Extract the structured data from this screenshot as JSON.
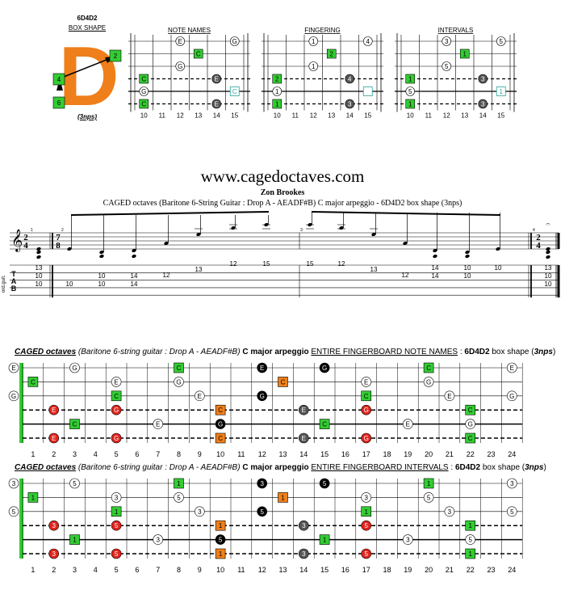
{
  "colors": {
    "green": "#33cc33",
    "orange": "#ef7f1a",
    "red": "#e3231c",
    "black": "#000000",
    "grey": "#555555",
    "white": "#ffffff",
    "teal": "#2aa39a"
  },
  "box": {
    "label_top": "6D4D2",
    "label_shape": "BOX SHAPE",
    "letter": "D",
    "marker_2": "2",
    "marker_4": "4",
    "marker_6": "6",
    "nps": "(3nps)"
  },
  "small_diagrams": {
    "titles": [
      "NOTE NAMES",
      "FINGERING",
      "INTERVALS"
    ],
    "fret_numbers": [
      "10",
      "11",
      "12",
      "13",
      "14",
      "15"
    ],
    "notes": [
      [
        {
          "s": 1,
          "f": 12,
          "t": "E",
          "c": "white"
        },
        {
          "s": 1,
          "f": 15,
          "t": "G",
          "c": "white"
        },
        {
          "s": 2,
          "f": 13,
          "t": "C",
          "c": "green"
        },
        {
          "s": 3,
          "f": 12,
          "t": "G",
          "c": "white"
        },
        {
          "s": 4,
          "f": 10,
          "t": "C",
          "c": "green"
        },
        {
          "s": 4,
          "f": 14,
          "t": "E",
          "c": "grey"
        },
        {
          "s": 5,
          "f": 10,
          "t": "G",
          "c": "white"
        },
        {
          "s": 5,
          "f": 15,
          "t": "C",
          "c": "ghost"
        },
        {
          "s": 6,
          "f": 10,
          "t": "C",
          "c": "green"
        },
        {
          "s": 6,
          "f": 14,
          "t": "E",
          "c": "grey"
        }
      ],
      [
        {
          "s": 1,
          "f": 12,
          "t": "1",
          "c": "white"
        },
        {
          "s": 1,
          "f": 15,
          "t": "4",
          "c": "white"
        },
        {
          "s": 2,
          "f": 13,
          "t": "2",
          "c": "green"
        },
        {
          "s": 3,
          "f": 12,
          "t": "1",
          "c": "white"
        },
        {
          "s": 4,
          "f": 10,
          "t": "2",
          "c": "green"
        },
        {
          "s": 4,
          "f": 14,
          "t": "4",
          "c": "grey"
        },
        {
          "s": 5,
          "f": 10,
          "t": "1",
          "c": "white"
        },
        {
          "s": 5,
          "f": 15,
          "t": "",
          "c": "ghost"
        },
        {
          "s": 6,
          "f": 10,
          "t": "1",
          "c": "green"
        },
        {
          "s": 6,
          "f": 14,
          "t": "3",
          "c": "grey"
        }
      ],
      [
        {
          "s": 1,
          "f": 12,
          "t": "3",
          "c": "white"
        },
        {
          "s": 1,
          "f": 15,
          "t": "5",
          "c": "white"
        },
        {
          "s": 2,
          "f": 13,
          "t": "1",
          "c": "green"
        },
        {
          "s": 3,
          "f": 12,
          "t": "5",
          "c": "white"
        },
        {
          "s": 4,
          "f": 10,
          "t": "1",
          "c": "green"
        },
        {
          "s": 4,
          "f": 14,
          "t": "3",
          "c": "grey"
        },
        {
          "s": 5,
          "f": 10,
          "t": "5",
          "c": "white"
        },
        {
          "s": 5,
          "f": 15,
          "t": "1",
          "c": "ghost"
        },
        {
          "s": 6,
          "f": 10,
          "t": "1",
          "c": "green"
        },
        {
          "s": 6,
          "f": 14,
          "t": "3",
          "c": "grey"
        }
      ]
    ]
  },
  "tab": {
    "site": "www.cagedoctaves.com",
    "author": "Zon Brookes",
    "subtitle": "CAGED octaves (Baritone 6-String Guitar : Drop A - AEADF#B) C major arpeggio - 6D4D2 box shape (3nps)",
    "time_sig_1": [
      "2",
      "4"
    ],
    "time_sig_2": [
      "7",
      "8"
    ],
    "time_sig_3": [
      "2",
      "4"
    ],
    "side_label": "ord.guit.",
    "tab_letters": [
      "T",
      "A",
      "B"
    ],
    "measure_numbers": [
      "1",
      "2",
      "3",
      "4"
    ],
    "m2_cols": [
      [
        {
          "s": 5,
          "t": "13"
        },
        {
          "s": 6,
          "t": "10"
        },
        {
          "s": 7,
          "t": "10"
        }
      ],
      [
        {
          "s": 7,
          "t": "10"
        }
      ],
      [
        {
          "s": 6,
          "t": "10"
        },
        {
          "s": 7,
          "t": "10"
        }
      ],
      [
        {
          "s": 6,
          "t": "14"
        },
        {
          "s": 7,
          "t": "14"
        }
      ],
      [
        {
          "s": 4,
          "t": "12"
        }
      ],
      [
        {
          "s": 3,
          "t": "13"
        }
      ],
      [
        {
          "s": 2,
          "t": "12"
        }
      ],
      [
        {
          "s": 2,
          "t": "15"
        }
      ]
    ],
    "m3_cols": [
      [
        {
          "s": 2,
          "t": "15"
        }
      ],
      [
        {
          "s": 2,
          "t": "12"
        }
      ],
      [
        {
          "s": 3,
          "t": "13"
        }
      ],
      [
        {
          "s": 4,
          "t": "12"
        }
      ],
      [
        {
          "s": 5,
          "t": "14"
        },
        {
          "s": 6,
          "t": "14"
        }
      ],
      [
        {
          "s": 5,
          "t": "10"
        },
        {
          "s": 6,
          "t": "10"
        }
      ],
      [
        {
          "s": 5,
          "t": "10"
        }
      ]
    ],
    "final_chord": [
      {
        "s": 5,
        "t": "13"
      },
      {
        "s": 6,
        "t": "10"
      },
      {
        "s": 7,
        "t": "10"
      }
    ]
  },
  "fb1": {
    "title_a": "CAGED octaves",
    "title_b": "(Baritone 6-string guitar",
    "title_c": ": Drop A - AEADF#B)",
    "title_d": "C major arpeggio",
    "title_e": "ENTIRE FINGERBOARD NOTE NAMES",
    "title_f": ":",
    "title_g": "6D4D2",
    "title_h": "box shape (",
    "title_i": "3nps",
    "title_j": ")",
    "open_notes": [
      {
        "s": 1,
        "t": "E"
      },
      {
        "s": 3,
        "t": "G"
      }
    ]
  },
  "fb2": {
    "title_a": "CAGED octaves",
    "title_b": "(Baritone 6-string guitar",
    "title_c": ": Drop A - AEADF#B)",
    "title_d": "C major arpeggio",
    "title_e": "ENTIRE FINGERBOARD INTERVALS",
    "title_f": ":",
    "title_g": "6D4D2",
    "title_h": "box shape (",
    "title_i": "3nps",
    "title_j": ")",
    "open_notes": [
      {
        "s": 1,
        "t": "3"
      },
      {
        "s": 3,
        "t": "5"
      }
    ]
  },
  "fret_labels": [
    "1",
    "2",
    "3",
    "4",
    "5",
    "6",
    "7",
    "8",
    "9",
    "10",
    "11",
    "12",
    "13",
    "14",
    "15",
    "16",
    "17",
    "18",
    "19",
    "20",
    "21",
    "22",
    "23",
    "24"
  ],
  "fb_notes": [
    {
      "s": 1,
      "f": 3,
      "n": "G",
      "i": "5",
      "c": "white"
    },
    {
      "s": 1,
      "f": 8,
      "n": "C",
      "i": "1",
      "c": "green"
    },
    {
      "s": 1,
      "f": 12,
      "n": "E",
      "i": "3",
      "c": "black"
    },
    {
      "s": 1,
      "f": 15,
      "n": "G",
      "i": "5",
      "c": "black"
    },
    {
      "s": 1,
      "f": 20,
      "n": "C",
      "i": "1",
      "c": "green"
    },
    {
      "s": 1,
      "f": 24,
      "n": "E",
      "i": "3",
      "c": "white"
    },
    {
      "s": 2,
      "f": 1,
      "n": "C",
      "i": "1",
      "c": "green"
    },
    {
      "s": 2,
      "f": 5,
      "n": "E",
      "i": "3",
      "c": "white"
    },
    {
      "s": 2,
      "f": 8,
      "n": "G",
      "i": "5",
      "c": "white"
    },
    {
      "s": 2,
      "f": 13,
      "n": "C",
      "i": "1",
      "c": "orange"
    },
    {
      "s": 2,
      "f": 17,
      "n": "E",
      "i": "3",
      "c": "white"
    },
    {
      "s": 2,
      "f": 20,
      "n": "G",
      "i": "5",
      "c": "white"
    },
    {
      "s": 3,
      "f": 5,
      "n": "C",
      "i": "1",
      "c": "green"
    },
    {
      "s": 3,
      "f": 9,
      "n": "E",
      "i": "3",
      "c": "white"
    },
    {
      "s": 3,
      "f": 12,
      "n": "G",
      "i": "5",
      "c": "black"
    },
    {
      "s": 3,
      "f": 17,
      "n": "C",
      "i": "1",
      "c": "green"
    },
    {
      "s": 3,
      "f": 21,
      "n": "E",
      "i": "3",
      "c": "white"
    },
    {
      "s": 3,
      "f": 24,
      "n": "G",
      "i": "5",
      "c": "white"
    },
    {
      "s": 4,
      "f": 2,
      "n": "E",
      "i": "3",
      "c": "red"
    },
    {
      "s": 4,
      "f": 5,
      "n": "G",
      "i": "5",
      "c": "red"
    },
    {
      "s": 4,
      "f": 10,
      "n": "C",
      "i": "1",
      "c": "orange"
    },
    {
      "s": 4,
      "f": 14,
      "n": "E",
      "i": "3",
      "c": "grey"
    },
    {
      "s": 4,
      "f": 17,
      "n": "G",
      "i": "5",
      "c": "red"
    },
    {
      "s": 4,
      "f": 22,
      "n": "C",
      "i": "1",
      "c": "green"
    },
    {
      "s": 5,
      "f": 3,
      "n": "C",
      "i": "1",
      "c": "green"
    },
    {
      "s": 5,
      "f": 7,
      "n": "E",
      "i": "3",
      "c": "white"
    },
    {
      "s": 5,
      "f": 10,
      "n": "G",
      "i": "5",
      "c": "black"
    },
    {
      "s": 5,
      "f": 15,
      "n": "C",
      "i": "1",
      "c": "green"
    },
    {
      "s": 5,
      "f": 19,
      "n": "E",
      "i": "3",
      "c": "white"
    },
    {
      "s": 5,
      "f": 22,
      "n": "G",
      "i": "5",
      "c": "white"
    },
    {
      "s": 6,
      "f": 2,
      "n": "E",
      "i": "3",
      "c": "red"
    },
    {
      "s": 6,
      "f": 5,
      "n": "G",
      "i": "5",
      "c": "red"
    },
    {
      "s": 6,
      "f": 10,
      "n": "C",
      "i": "1",
      "c": "orange"
    },
    {
      "s": 6,
      "f": 14,
      "n": "E",
      "i": "3",
      "c": "grey"
    },
    {
      "s": 6,
      "f": 17,
      "n": "G",
      "i": "5",
      "c": "red"
    },
    {
      "s": 6,
      "f": 22,
      "n": "C",
      "i": "1",
      "c": "green"
    }
  ]
}
